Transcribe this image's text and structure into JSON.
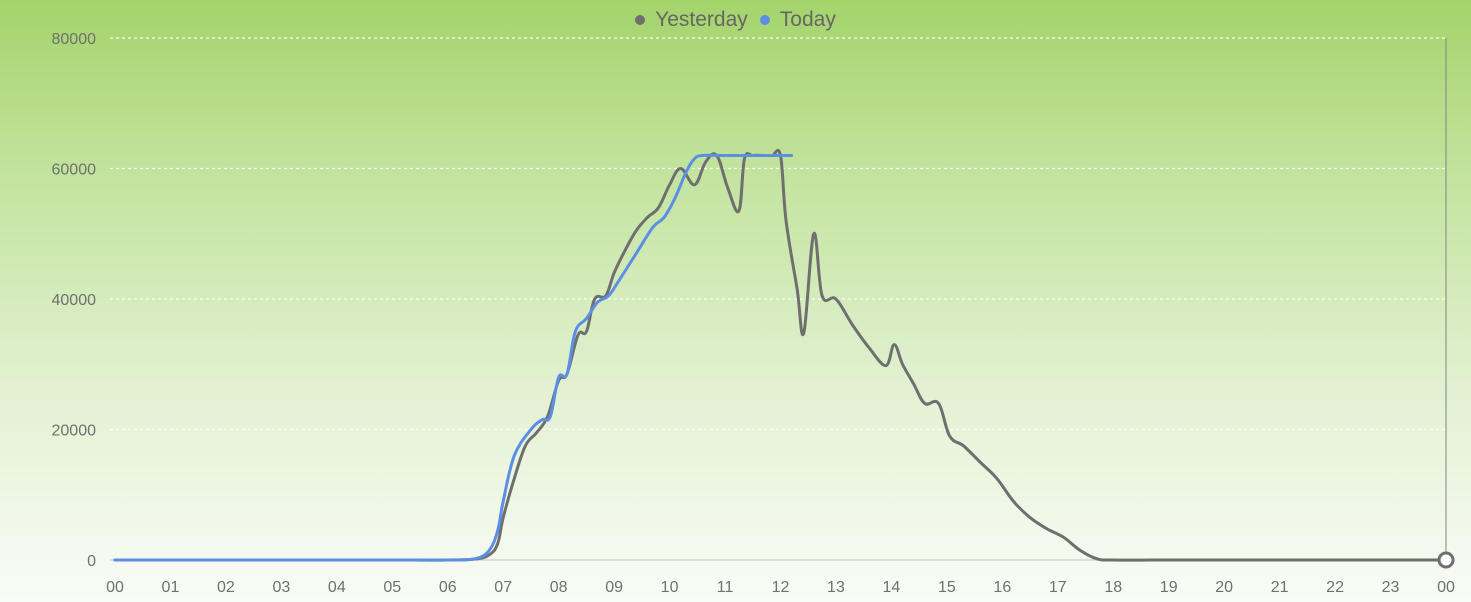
{
  "chart_data": {
    "type": "line",
    "title": "",
    "xlabel": "",
    "ylabel": "",
    "x_ticks": [
      "00",
      "01",
      "02",
      "03",
      "04",
      "05",
      "06",
      "07",
      "08",
      "09",
      "10",
      "11",
      "12",
      "13",
      "14",
      "15",
      "16",
      "17",
      "18",
      "19",
      "20",
      "21",
      "22",
      "23",
      "00"
    ],
    "y_ticks": [
      "0",
      "20000",
      "40000",
      "60000",
      "80000"
    ],
    "xlim": [
      0,
      24
    ],
    "ylim": [
      0,
      80000
    ],
    "grid": "horizontal dashed",
    "legend": "top-center",
    "colors": {
      "yesterday": "#6f6f6f",
      "today": "#5b8fe6",
      "grid": "#ffffff",
      "axis_text": "#707070"
    },
    "series": [
      {
        "name": "Yesterday",
        "x": [
          0,
          1,
          2,
          3,
          4,
          5,
          6,
          6.5,
          6.75,
          6.9,
          7.0,
          7.2,
          7.4,
          7.6,
          7.8,
          8.0,
          8.15,
          8.35,
          8.5,
          8.65,
          8.85,
          9.0,
          9.2,
          9.4,
          9.6,
          9.8,
          10.0,
          10.2,
          10.45,
          10.65,
          10.85,
          11.05,
          11.25,
          11.35,
          11.5,
          11.7,
          11.85,
          12.0,
          12.1,
          12.3,
          12.42,
          12.6,
          12.75,
          13.0,
          13.3,
          13.6,
          13.9,
          14.05,
          14.2,
          14.4,
          14.6,
          14.85,
          15.05,
          15.3,
          15.6,
          15.9,
          16.2,
          16.5,
          16.8,
          17.1,
          17.4,
          17.7,
          18.0,
          19,
          20,
          21,
          22,
          23,
          24
        ],
        "values": [
          0,
          0,
          0,
          0,
          0,
          0,
          0,
          150,
          800,
          2500,
          6500,
          12500,
          17500,
          19500,
          22000,
          27500,
          28500,
          34500,
          35000,
          40000,
          40500,
          44000,
          47500,
          50500,
          52500,
          54000,
          57500,
          60000,
          57500,
          61000,
          62000,
          57000,
          53500,
          61500,
          62000,
          62000,
          62000,
          62000,
          52000,
          41500,
          34800,
          50000,
          40500,
          40000,
          36000,
          32500,
          29800,
          33000,
          30000,
          27000,
          24000,
          24000,
          19000,
          17500,
          15000,
          12500,
          9000,
          6500,
          4800,
          3500,
          1500,
          200,
          0,
          0,
          0,
          0,
          0,
          0,
          0
        ]
      },
      {
        "name": "Today",
        "x": [
          0,
          1,
          2,
          3,
          4,
          5,
          6,
          6.5,
          6.75,
          6.9,
          7.0,
          7.2,
          7.5,
          7.7,
          7.85,
          8.0,
          8.15,
          8.3,
          8.5,
          8.7,
          8.9,
          9.1,
          9.4,
          9.7,
          9.9,
          10.1,
          10.3,
          10.45,
          10.6,
          11.0,
          11.4,
          11.8,
          12.0,
          12.2
        ],
        "values": [
          0,
          0,
          0,
          0,
          0,
          0,
          0,
          200,
          1500,
          4500,
          9000,
          16000,
          20000,
          21500,
          22000,
          28000,
          28500,
          35000,
          37000,
          39500,
          40500,
          43000,
          47000,
          51000,
          52500,
          55500,
          59500,
          61500,
          62000,
          62000,
          62000,
          62000,
          62000,
          62000
        ]
      }
    ]
  }
}
